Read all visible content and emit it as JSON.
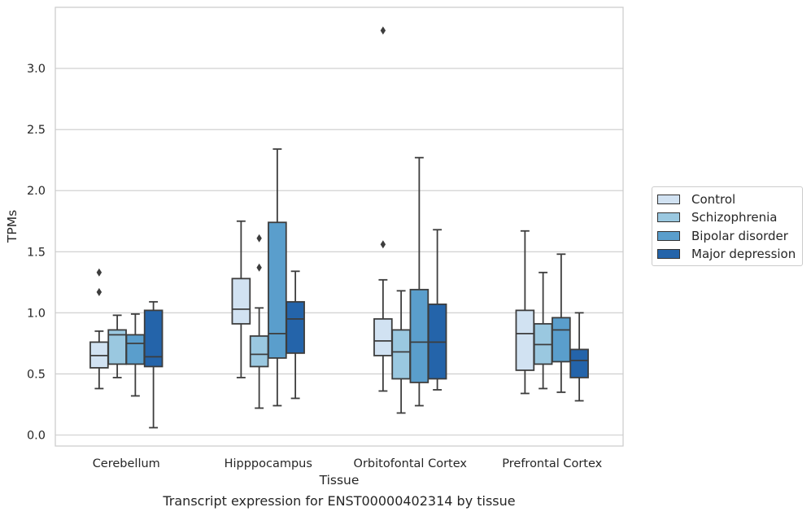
{
  "chart_data": {
    "type": "box",
    "title": "Transcript expression for ENST00000402314 by tissue",
    "xlabel": "Tissue",
    "ylabel": "TPMs",
    "ylim": [
      -0.09,
      3.5
    ],
    "yticks": [
      "0.0",
      "0.5",
      "1.0",
      "1.5",
      "2.0",
      "2.5",
      "3.0"
    ],
    "grid": "horizontal",
    "legend_position": "right",
    "categories": [
      "Cerebellum",
      "Hipppocampus",
      "Orbitofontal Cortex",
      "Prefrontal Cortex"
    ],
    "series": [
      {
        "name": "Control",
        "color": "#d1e2f2",
        "boxes": [
          {
            "whislo": 0.38,
            "q1": 0.55,
            "med": 0.65,
            "q3": 0.76,
            "whishi": 0.85,
            "fliers": [
              1.17,
              1.33
            ]
          },
          {
            "whislo": 0.47,
            "q1": 0.91,
            "med": 1.03,
            "q3": 1.28,
            "whishi": 1.75,
            "fliers": []
          },
          {
            "whislo": 0.36,
            "q1": 0.65,
            "med": 0.77,
            "q3": 0.95,
            "whishi": 1.27,
            "fliers": [
              1.56,
              3.31
            ]
          },
          {
            "whislo": 0.34,
            "q1": 0.53,
            "med": 0.83,
            "q3": 1.02,
            "whishi": 1.67,
            "fliers": []
          }
        ]
      },
      {
        "name": "Schizophrenia",
        "color": "#9ac8e0",
        "boxes": [
          {
            "whislo": 0.47,
            "q1": 0.58,
            "med": 0.82,
            "q3": 0.86,
            "whishi": 0.98,
            "fliers": []
          },
          {
            "whislo": 0.22,
            "q1": 0.56,
            "med": 0.66,
            "q3": 0.81,
            "whishi": 1.04,
            "fliers": [
              1.37,
              1.61
            ]
          },
          {
            "whislo": 0.18,
            "q1": 0.46,
            "med": 0.68,
            "q3": 0.86,
            "whishi": 1.18,
            "fliers": []
          },
          {
            "whislo": 0.38,
            "q1": 0.58,
            "med": 0.74,
            "q3": 0.91,
            "whishi": 1.33,
            "fliers": []
          }
        ]
      },
      {
        "name": "Bipolar disorder",
        "color": "#5a9ecc",
        "boxes": [
          {
            "whislo": 0.32,
            "q1": 0.58,
            "med": 0.75,
            "q3": 0.82,
            "whishi": 0.99,
            "fliers": []
          },
          {
            "whislo": 0.24,
            "q1": 0.63,
            "med": 0.83,
            "q3": 1.74,
            "whishi": 2.34,
            "fliers": []
          },
          {
            "whislo": 0.24,
            "q1": 0.43,
            "med": 0.76,
            "q3": 1.19,
            "whishi": 2.27,
            "fliers": []
          },
          {
            "whislo": 0.35,
            "q1": 0.6,
            "med": 0.86,
            "q3": 0.96,
            "whishi": 1.48,
            "fliers": []
          }
        ]
      },
      {
        "name": "Major depression",
        "color": "#2464aa",
        "boxes": [
          {
            "whislo": 0.06,
            "q1": 0.56,
            "med": 0.64,
            "q3": 1.02,
            "whishi": 1.09,
            "fliers": []
          },
          {
            "whislo": 0.3,
            "q1": 0.67,
            "med": 0.95,
            "q3": 1.09,
            "whishi": 1.34,
            "fliers": []
          },
          {
            "whislo": 0.37,
            "q1": 0.46,
            "med": 0.76,
            "q3": 1.07,
            "whishi": 1.68,
            "fliers": []
          },
          {
            "whislo": 0.28,
            "q1": 0.47,
            "med": 0.61,
            "q3": 0.7,
            "whishi": 1.0,
            "fliers": []
          }
        ]
      }
    ]
  }
}
